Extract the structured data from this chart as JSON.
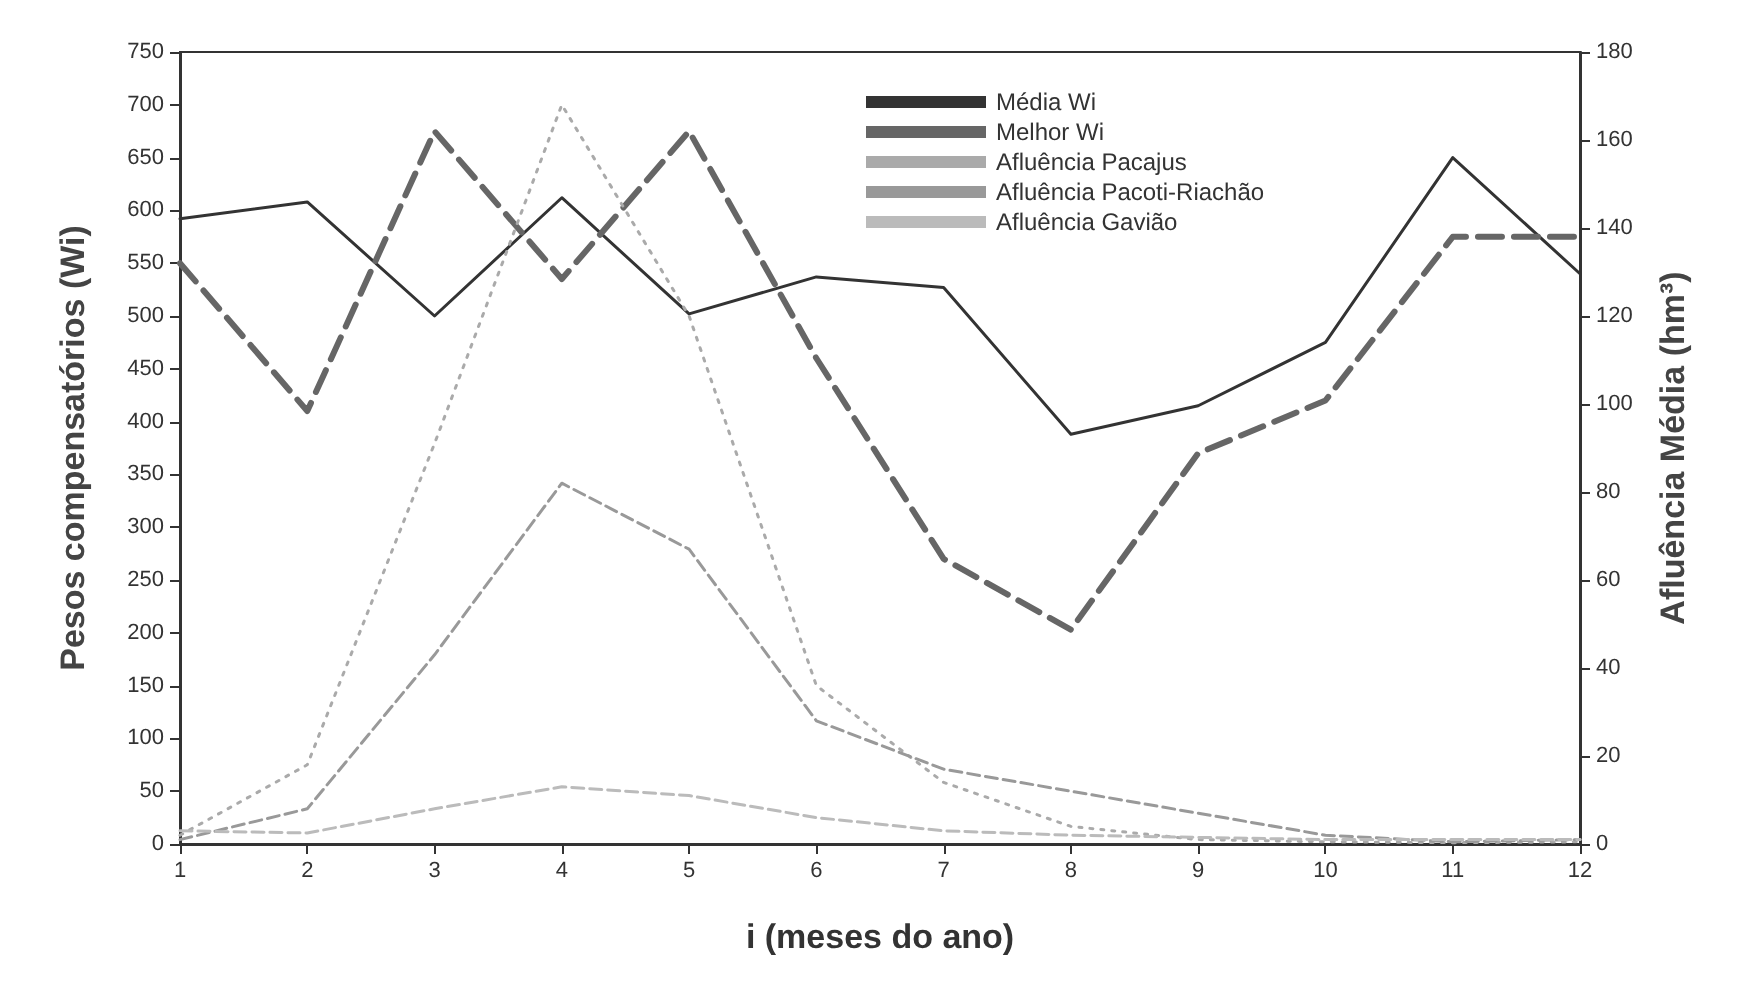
{
  "chart_data": {
    "type": "line",
    "xlabel": "i (meses do ano)",
    "ylabel": "Pesos compensatórios (Wi)",
    "y2label": "Afluência Média (hm³)",
    "x": [
      1,
      2,
      3,
      4,
      5,
      6,
      7,
      8,
      9,
      10,
      11,
      12
    ],
    "xlim": [
      1,
      12
    ],
    "xticks": [
      1,
      2,
      3,
      4,
      5,
      6,
      7,
      8,
      9,
      10,
      11,
      12
    ],
    "ylim": [
      0,
      750
    ],
    "yticks": [
      0,
      50,
      100,
      150,
      200,
      250,
      300,
      350,
      400,
      450,
      500,
      550,
      600,
      650,
      700,
      750
    ],
    "y2lim": [
      0,
      180
    ],
    "y2ticks": [
      0,
      20,
      40,
      60,
      80,
      100,
      120,
      140,
      160,
      180
    ],
    "grid": false,
    "legend": "top",
    "marker": "none",
    "series": [
      {
        "name": "Média Wi",
        "color": "#333333",
        "line_style": "solid",
        "values": [
          592,
          608,
          500,
          612,
          502,
          537,
          527,
          388,
          415,
          475,
          650,
          540
        ]
      },
      {
        "name": "Melhor Wi",
        "color": "#666666",
        "line_style": "dashed",
        "values": [
          550,
          410,
          675,
          535,
          675,
          460,
          270,
          203,
          370,
          420,
          575,
          575
        ]
      },
      {
        "name": "Afluência Pacajus",
        "color": "#aaaaaa",
        "line_style": "dotted",
        "axis": "y2",
        "values": [
          2,
          18,
          91,
          168,
          120,
          36,
          14,
          4,
          1,
          0.5,
          0.3,
          0.5
        ]
      },
      {
        "name": "Afluência Pacoti-Riachão",
        "color": "#999999",
        "line_style": "dashed",
        "axis": "y2",
        "values": [
          1,
          8,
          43,
          82,
          67,
          28,
          17,
          12,
          7,
          2,
          0.5,
          1
        ]
      },
      {
        "name": "Afluência Gavião",
        "color": "#bbbbbb",
        "line_style": "dashed",
        "axis": "y2",
        "values": [
          3,
          2.5,
          8,
          13,
          11,
          6,
          3,
          2,
          1.5,
          1,
          1,
          1
        ]
      }
    ]
  }
}
